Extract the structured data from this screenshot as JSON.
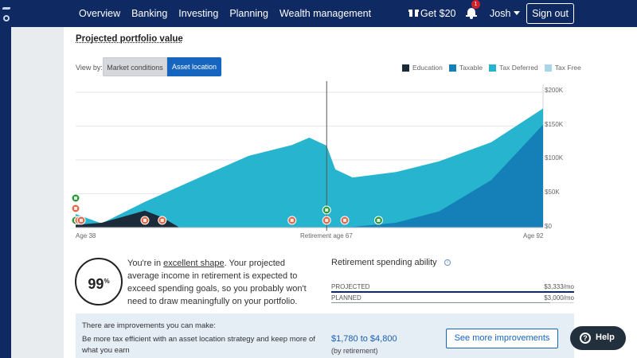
{
  "header": {
    "nav": [
      "Overview",
      "Banking",
      "Investing",
      "Planning",
      "Wealth management"
    ],
    "referral": "Get $20",
    "notifications_count": "1",
    "user_name": "Josh",
    "sign_out": "Sign out"
  },
  "chart_section": {
    "title": "Projected portfolio value",
    "view_by_label": "View by:",
    "view_options": [
      "Market conditions",
      "Asset location"
    ],
    "selected_view": "Asset location"
  },
  "chart_data": {
    "type": "area",
    "title": "",
    "xlabel": "",
    "ylabel": "",
    "y_tick_labels": [
      "$200K",
      "$150K",
      "$100K",
      "$50K",
      "$0"
    ],
    "x_tick_labels": [
      "Age 38",
      "Retirement age 67",
      "Age 92"
    ],
    "x_range": [
      38,
      92
    ],
    "y_range": [
      0,
      200000
    ],
    "legend_position": "top-right",
    "stacked": true,
    "series": [
      {
        "name": "Education",
        "color": "#1c2b3a",
        "points": [
          [
            38,
            4000
          ],
          [
            41,
            7000
          ],
          [
            46,
            25000
          ],
          [
            48,
            15000
          ],
          [
            50,
            0
          ],
          [
            92,
            0
          ]
        ]
      },
      {
        "name": "Taxable",
        "color": "#1580b8",
        "points": [
          [
            38,
            0
          ],
          [
            67,
            0
          ],
          [
            70,
            1000
          ],
          [
            75,
            7000
          ],
          [
            80,
            24000
          ],
          [
            86,
            70000
          ],
          [
            92,
            152000
          ]
        ]
      },
      {
        "name": "Tax Deferred",
        "color": "#27b4cf",
        "points": [
          [
            38,
            20000
          ],
          [
            41,
            6000
          ],
          [
            46,
            38000
          ],
          [
            53,
            78000
          ],
          [
            58,
            106000
          ],
          [
            63,
            122000
          ],
          [
            65,
            133000
          ],
          [
            67,
            121000
          ],
          [
            68,
            86000
          ],
          [
            70,
            74000
          ],
          [
            75,
            82000
          ],
          [
            80,
            98000
          ],
          [
            86,
            126000
          ],
          [
            92,
            176000
          ]
        ]
      },
      {
        "name": "Tax Free",
        "color": "#a9d4eb",
        "points": []
      }
    ],
    "retirement_age": 67,
    "event_markers": [
      {
        "age": 38,
        "icon": "piggy-bank-icon",
        "color": "#2e9a3e"
      },
      {
        "age": 38,
        "icon": "home-icon",
        "color": "#e06b4c"
      },
      {
        "age": 38,
        "icon": "dollar-icon",
        "color": "#2e9a3e"
      },
      {
        "age": 38,
        "icon": "child-icon",
        "color": "#e06b4c"
      },
      {
        "age": 38,
        "icon": "gift-icon",
        "color": "#e06b4c"
      },
      {
        "age": 46,
        "icon": "graduation-icon",
        "color": "#e06b4c"
      },
      {
        "age": 48,
        "icon": "tool-icon",
        "color": "#e06b4c"
      },
      {
        "age": 63,
        "icon": "heart-icon",
        "color": "#e06b4c"
      },
      {
        "age": 67,
        "icon": "income-icon",
        "color": "#2e9a3e"
      },
      {
        "age": 67,
        "icon": "umbrella-icon",
        "color": "#e06b4c"
      },
      {
        "age": 69,
        "icon": "umbrella-icon",
        "color": "#e06b4c"
      },
      {
        "age": 73,
        "icon": "income-icon",
        "color": "#2e9a3e"
      }
    ]
  },
  "score": {
    "value": "99",
    "unit": "%"
  },
  "summary": {
    "pre": "You're in ",
    "highlight": "excellent shape",
    "post": ". Your projected average income in retirement is expected to exceed spending goals, so you probably won't need to draw meaningfully on your portfolio."
  },
  "spending": {
    "title": "Retirement spending ability",
    "projected_label": "PROJECTED",
    "projected_value": "$3,333/mo",
    "planned_label": "PLANNED",
    "planned_value": "$3,000/mo",
    "projected_fraction": 1.0,
    "planned_fraction": 0.9
  },
  "improvements": {
    "heading": "There are improvements you can make:",
    "text": "Be more tax efficient with an asset location strategy and keep more of what you earn",
    "range": "$1,780 to $4,800",
    "range_note": "(by retirement)",
    "button": "See more improvements"
  },
  "help": {
    "label": "Help"
  }
}
